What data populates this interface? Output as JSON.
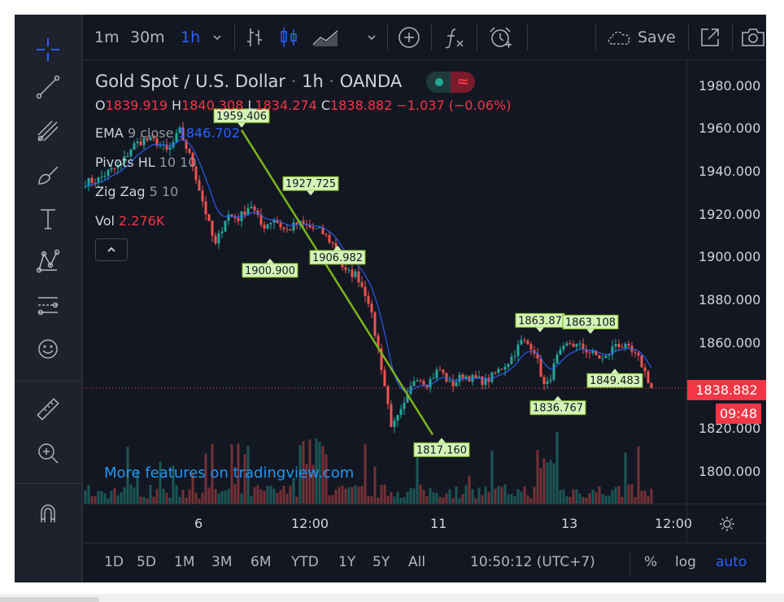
{
  "toolbar": {
    "intervals": [
      "1m",
      "30m",
      "1h"
    ],
    "active_interval": "1h",
    "save_label": "Save"
  },
  "legend": {
    "symbol": "Gold Spot / U.S. Dollar",
    "interval": "1h",
    "exchange": "OANDA",
    "ohlc": {
      "o_label": "O",
      "o": "1839.919",
      "h_label": "H",
      "h": "1840.308",
      "l_label": "L",
      "l": "1834.274",
      "c_label": "C",
      "c": "1838.882",
      "change": "−1.037 (−0.06%)"
    },
    "indicators": [
      {
        "name": "EMA",
        "params": "9 close",
        "value": "1846.702",
        "color": "#2962ff"
      },
      {
        "name": "Pivots HL",
        "params": "10 10",
        "value": ""
      },
      {
        "name": "Zig Zag",
        "params": "5 10",
        "value": ""
      },
      {
        "name": "Vol",
        "params": "",
        "value": "2.276K",
        "color": "#f23645"
      }
    ]
  },
  "promo_text": "More features on tradingview.com",
  "price_axis": {
    "labels": [
      "1980.000",
      "1960.000",
      "1940.000",
      "1920.000",
      "1900.000",
      "1880.000",
      "1860.000",
      "1840.000",
      "1820.000",
      "1800.000"
    ],
    "current_price": "1838.882",
    "countdown": "09:48"
  },
  "time_axis": {
    "labels": [
      "6",
      "12:00",
      "11",
      "13",
      "12:00"
    ]
  },
  "bottom_bar": {
    "ranges": [
      "1D",
      "5D",
      "1M",
      "3M",
      "6M",
      "YTD",
      "1Y",
      "5Y",
      "All"
    ],
    "clock": "10:50:12 (UTC+7)",
    "percent_label": "%",
    "log_label": "log",
    "auto_label": "auto"
  },
  "colors": {
    "up": "#26a69a",
    "down": "#ef5350",
    "ema": "#2962ff",
    "zigzag": "#7cb518",
    "pivot_label_bg": "#d4f5b8",
    "background": "#131722"
  },
  "chart_data": {
    "type": "candlestick",
    "title": "Gold Spot / U.S. Dollar",
    "ylim": [
      1785,
      1992
    ],
    "pivot_labels": [
      {
        "text": "1959.406",
        "price": 1959.406,
        "kind": "high"
      },
      {
        "text": "1927.725",
        "price": 1927.725,
        "kind": "high"
      },
      {
        "text": "1900.900",
        "price": 1900.9,
        "kind": "low"
      },
      {
        "text": "1906.982",
        "price": 1906.982,
        "kind": "low"
      },
      {
        "text": "1817.160",
        "price": 1817.16,
        "kind": "low"
      },
      {
        "text": "1863.87",
        "price": 1863.87,
        "kind": "high"
      },
      {
        "text": "1863.108",
        "price": 1863.108,
        "kind": "high"
      },
      {
        "text": "1836.767",
        "price": 1836.767,
        "kind": "low"
      },
      {
        "text": "1849.483",
        "price": 1849.483,
        "kind": "low"
      }
    ],
    "zigzag": [
      {
        "price": 1959.406
      },
      {
        "price": 1817.16
      }
    ],
    "path_anchors": [
      1935,
      1936,
      1940,
      1943,
      1952,
      1955,
      1954,
      1949,
      1959,
      1945,
      1925,
      1905,
      1920,
      1918,
      1925,
      1914,
      1918,
      1912,
      1916,
      1914,
      1912,
      1906,
      1893,
      1892,
      1880,
      1852,
      1820,
      1830,
      1845,
      1841,
      1848,
      1840,
      1845,
      1843,
      1842,
      1847,
      1852,
      1861,
      1858,
      1838,
      1853,
      1860,
      1858,
      1855,
      1852,
      1860,
      1857,
      1852,
      1839
    ]
  }
}
